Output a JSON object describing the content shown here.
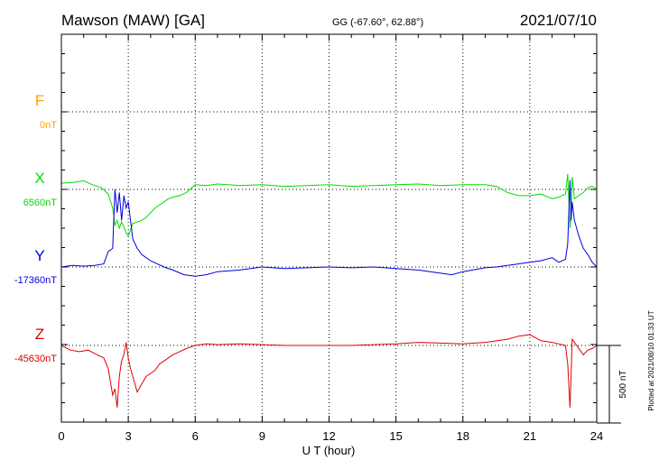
{
  "header": {
    "station": "Mawson (MAW)  [GA]",
    "coords": "GG (-67.60°,  62.88°)",
    "date": "2021/07/10"
  },
  "footer": {
    "plotted": "Plotted at 2021/08/10 01:33 UT"
  },
  "chart_data": {
    "type": "line",
    "xlabel": "U T (hour)",
    "xlim": [
      0,
      24
    ],
    "xticks": [
      0,
      3,
      6,
      9,
      12,
      15,
      18,
      21,
      24
    ],
    "scale": {
      "label": "500 nT",
      "nT": 500
    },
    "series": [
      {
        "name": "F",
        "baseline_label": "0nT",
        "color": "#ffa500",
        "baseline_nT": 0,
        "x": [],
        "y": []
      },
      {
        "name": "X",
        "baseline_label": "6560nT",
        "color": "#00dd00",
        "baseline_nT": 6560,
        "x": [
          0,
          0.5,
          1.0,
          1.4,
          1.8,
          2.1,
          2.3,
          2.4,
          2.5,
          2.6,
          2.7,
          2.8,
          2.9,
          3.0,
          3.1,
          3.2,
          3.4,
          3.6,
          3.8,
          4.0,
          4.2,
          4.4,
          4.6,
          4.8,
          5.0,
          5.3,
          5.6,
          6.0,
          6.5,
          7.0,
          8.0,
          9.0,
          10.0,
          11.0,
          12.0,
          13.0,
          14.0,
          15.0,
          16.0,
          17.0,
          18.0,
          19.0,
          19.5,
          20.0,
          20.5,
          21.0,
          21.5,
          22.0,
          22.3,
          22.6,
          22.7,
          22.8,
          22.85,
          22.9,
          23.0,
          23.2,
          23.4,
          23.6,
          23.8,
          24.0
        ],
        "y": [
          40,
          45,
          55,
          30,
          10,
          -30,
          -120,
          -230,
          -200,
          -250,
          -210,
          -240,
          -280,
          -300,
          -260,
          -220,
          -210,
          -200,
          -180,
          -150,
          -120,
          -100,
          -80,
          -60,
          -50,
          -40,
          -20,
          30,
          25,
          35,
          25,
          30,
          20,
          25,
          30,
          20,
          25,
          30,
          35,
          25,
          30,
          30,
          20,
          -20,
          -40,
          -40,
          -30,
          -60,
          -50,
          -30,
          100,
          -250,
          -160,
          80,
          -60,
          -40,
          -20,
          10,
          20,
          0
        ]
      },
      {
        "name": "Y",
        "baseline_label": "-17360nT",
        "color": "#0000dd",
        "baseline_nT": -17360,
        "x": [
          0,
          0.5,
          1.0,
          1.5,
          1.9,
          2.1,
          2.3,
          2.4,
          2.5,
          2.6,
          2.7,
          2.8,
          2.9,
          3.0,
          3.1,
          3.2,
          3.4,
          3.6,
          3.8,
          4.0,
          4.3,
          4.6,
          5.0,
          5.5,
          6.0,
          6.5,
          7.0,
          8.0,
          9.0,
          10.0,
          11.0,
          12.0,
          13.0,
          14.0,
          15.0,
          16.0,
          17.0,
          17.5,
          18.0,
          19.0,
          19.5,
          20.0,
          20.5,
          21.0,
          21.5,
          22.0,
          22.3,
          22.6,
          22.7,
          22.8,
          22.85,
          22.9,
          23.0,
          23.2,
          23.4,
          23.6,
          23.8,
          24.0
        ],
        "y": [
          0,
          10,
          5,
          10,
          20,
          100,
          120,
          500,
          350,
          480,
          300,
          460,
          380,
          420,
          300,
          180,
          120,
          80,
          60,
          40,
          20,
          0,
          -20,
          -50,
          -60,
          -50,
          -30,
          -20,
          0,
          -10,
          -5,
          0,
          -5,
          0,
          -10,
          -20,
          -40,
          -50,
          -30,
          -5,
          0,
          10,
          20,
          30,
          40,
          60,
          30,
          50,
          150,
          560,
          300,
          420,
          300,
          200,
          120,
          80,
          30,
          0
        ]
      },
      {
        "name": "Z",
        "baseline_label": "-45630nT",
        "color": "#dd0000",
        "baseline_nT": -45630,
        "x": [
          0,
          0.4,
          0.8,
          1.2,
          1.6,
          1.9,
          2.1,
          2.3,
          2.4,
          2.5,
          2.6,
          2.7,
          2.8,
          2.9,
          3.0,
          3.1,
          3.2,
          3.4,
          3.6,
          3.8,
          4.0,
          4.2,
          4.4,
          4.6,
          4.8,
          5.0,
          5.3,
          5.6,
          6.0,
          6.5,
          7.0,
          8.0,
          9.0,
          10.0,
          11.0,
          12.0,
          13.0,
          14.0,
          15.0,
          16.0,
          17.0,
          18.0,
          19.0,
          20.0,
          20.5,
          21.0,
          21.5,
          22.0,
          22.3,
          22.6,
          22.7,
          22.8,
          22.85,
          22.9,
          23.0,
          23.2,
          23.4,
          23.6,
          23.8,
          24.0
        ],
        "y": [
          0,
          -30,
          -40,
          -30,
          -60,
          -80,
          -150,
          -320,
          -280,
          -400,
          -200,
          -100,
          -60,
          20,
          -80,
          -150,
          -200,
          -300,
          -250,
          -200,
          -180,
          -160,
          -120,
          -100,
          -80,
          -60,
          -40,
          -20,
          0,
          10,
          5,
          10,
          5,
          0,
          0,
          0,
          0,
          5,
          10,
          20,
          15,
          10,
          20,
          40,
          60,
          70,
          30,
          20,
          10,
          0,
          -120,
          -400,
          -200,
          40,
          20,
          -20,
          -60,
          -30,
          -20,
          0
        ]
      }
    ]
  }
}
